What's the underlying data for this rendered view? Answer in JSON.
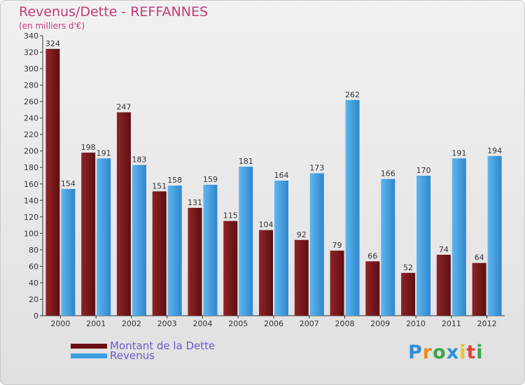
{
  "title": "Revenus/Dette - REFFANNES",
  "subtitle": "(en milliers d'€)",
  "logo": "Proxiti",
  "chart_data": {
    "type": "bar",
    "title": "Revenus/Dette - REFFANNES",
    "ylabel": "(en milliers d'€)",
    "xlabel": "",
    "ylim": [
      0,
      340
    ],
    "yticks": [
      0,
      20,
      40,
      60,
      80,
      100,
      120,
      140,
      160,
      180,
      200,
      220,
      240,
      260,
      280,
      300,
      320,
      340
    ],
    "grid": false,
    "legend_position": "bottom-left",
    "categories": [
      "2000",
      "2001",
      "2002",
      "2003",
      "2004",
      "2005",
      "2006",
      "2007",
      "2008",
      "2009",
      "2010",
      "2011",
      "2012"
    ],
    "series": [
      {
        "name": "Montant de la Dette",
        "color": "#7a1a1c",
        "values": [
          324,
          198,
          247,
          151,
          131,
          115,
          104,
          92,
          79,
          66,
          52,
          74,
          64
        ]
      },
      {
        "name": "Revenus",
        "color": "#3d9fe2",
        "values": [
          154,
          191,
          183,
          158,
          159,
          181,
          164,
          173,
          262,
          166,
          170,
          191,
          194
        ]
      }
    ]
  }
}
